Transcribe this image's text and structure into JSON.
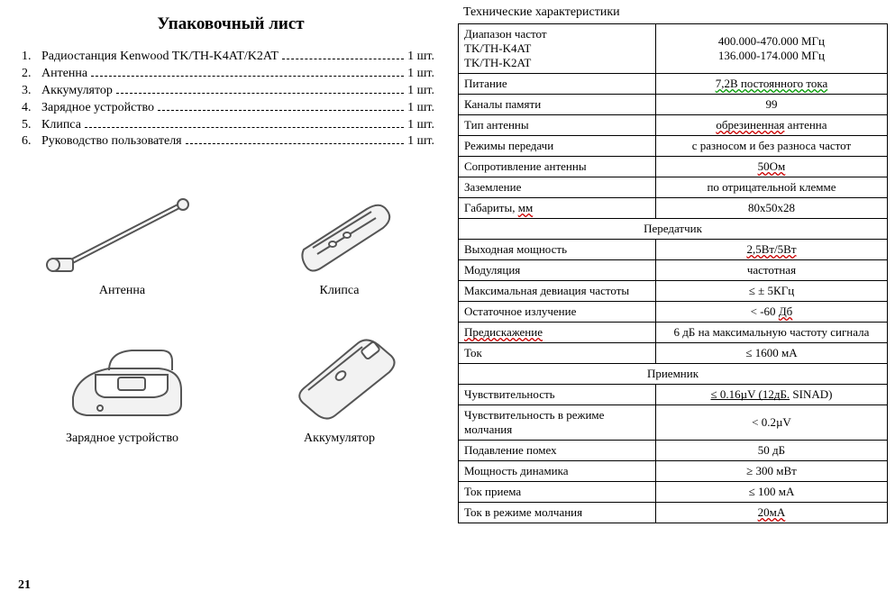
{
  "left": {
    "title": "Упаковочный лист",
    "packing": [
      {
        "num": "1.",
        "name": "Радиостанция Kenwood TK/TH-K4AT/K2AT",
        "qty": "1 шт."
      },
      {
        "num": "2.",
        "name": "Антенна",
        "qty": "1 шт."
      },
      {
        "num": "3.",
        "name": "Аккумулятор",
        "qty": "1 шт."
      },
      {
        "num": "4.",
        "name": "Зарядное устройство",
        "qty": "1 шт."
      },
      {
        "num": "5.",
        "name": "Клипса",
        "qty": "1 шт."
      },
      {
        "num": "6.",
        "name": "Руководство пользователя",
        "qty": "1 шт."
      }
    ],
    "illustrations": {
      "antenna": "Антенна",
      "clip": "Клипса",
      "charger": "Зарядное устройство",
      "battery": "Аккумулятор"
    },
    "page_number": "21"
  },
  "right": {
    "spec_title": "Технические характеристики",
    "rows": [
      {
        "kind": "row",
        "label_html": "Диапазон частот<br>TK/TH-K4AT<br>TK/TH-K2AT",
        "value_html": "400.000-470.000 МГц<br>136.000-174.000 МГц"
      },
      {
        "kind": "row",
        "label_html": "Питание",
        "value_html": "<span class=\"wavy-green\">7,2В постоянного тока</span>"
      },
      {
        "kind": "row",
        "label_html": "Каналы памяти",
        "value_html": "99"
      },
      {
        "kind": "row",
        "label_html": "Тип антенны",
        "value_html": "<span class=\"wavy-red\">обрезиненная</span> антенна"
      },
      {
        "kind": "row",
        "label_html": "Режимы передачи",
        "value_html": "с разносом и без разноса частот"
      },
      {
        "kind": "row",
        "label_html": "Сопротивление антенны",
        "value_html": "<span class=\"wavy-red\">50Ом</span>"
      },
      {
        "kind": "row",
        "label_html": "Заземление",
        "value_html": "по отрицательной клемме"
      },
      {
        "kind": "row",
        "label_html": "Габариты, <span class=\"wavy-red\">мм</span>",
        "value_html": "80x50x28"
      },
      {
        "kind": "section",
        "text": "Передатчик"
      },
      {
        "kind": "row",
        "label_html": "Выходная мощность",
        "value_html": "<span class=\"wavy-red\">2,5Вт/5Вт</span>"
      },
      {
        "kind": "row",
        "label_html": "Модуляция",
        "value_html": "частотная"
      },
      {
        "kind": "row",
        "label_html": "Максимальная девиация частоты",
        "value_html": "≤ ± 5КГц"
      },
      {
        "kind": "row",
        "label_html": "Остаточное излучение",
        "value_html": "< -60 <span class=\"wavy-red\">Дб</span>"
      },
      {
        "kind": "row",
        "label_html": "<span class=\"wavy-red\">Предискажение</span>",
        "value_html": "6 дБ на максимальную частоту сигнала"
      },
      {
        "kind": "row",
        "label_html": "Ток",
        "value_html": "≤ 1600 мА"
      },
      {
        "kind": "section",
        "text": "Приемник"
      },
      {
        "kind": "row",
        "label_html": "Чувствительность",
        "value_html": "<span class=\"wavy-green uline\">≤ 0.16µV (12дБ.</span>  SINAD)"
      },
      {
        "kind": "row",
        "label_html": "Чувствительность в режиме молчания",
        "value_html": "< 0.2µV"
      },
      {
        "kind": "row",
        "label_html": "Подавление помех",
        "value_html": "50 дБ"
      },
      {
        "kind": "row",
        "label_html": "Мощность динамика",
        "value_html": "≥ 300 мВт"
      },
      {
        "kind": "row",
        "label_html": "Ток приема",
        "value_html": "≤ 100 мА"
      },
      {
        "kind": "row",
        "label_html": "Ток в режиме молчания",
        "value_html": "<span class=\"wavy-red\">20мА</span>"
      }
    ]
  },
  "style": {
    "svg_stroke": "#555",
    "svg_fill_light": "#f2f2f2"
  }
}
